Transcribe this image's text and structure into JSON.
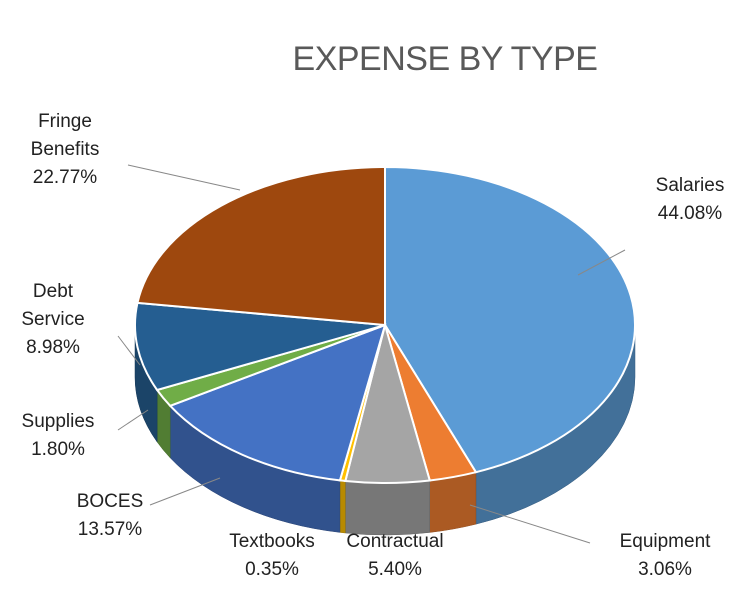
{
  "chart_data": {
    "type": "pie",
    "title": "EXPENSE BY TYPE",
    "categories": [
      "Salaries",
      "Equipment",
      "Contractual",
      "Textbooks",
      "BOCES",
      "Supplies",
      "Debt Service",
      "Fringe Benefits"
    ],
    "values": [
      44.08,
      3.06,
      5.4,
      0.35,
      13.57,
      1.8,
      8.98,
      22.77
    ],
    "value_labels": [
      "44.08%",
      "3.06%",
      "5.40%",
      "0.35%",
      "13.57%",
      "1.80%",
      "8.98%",
      "22.77%"
    ],
    "colors": [
      "#5b9bd5",
      "#ed7d31",
      "#a5a5a5",
      "#ffc000",
      "#4472c4",
      "#70ad47",
      "#255e91",
      "#9e480e"
    ]
  }
}
